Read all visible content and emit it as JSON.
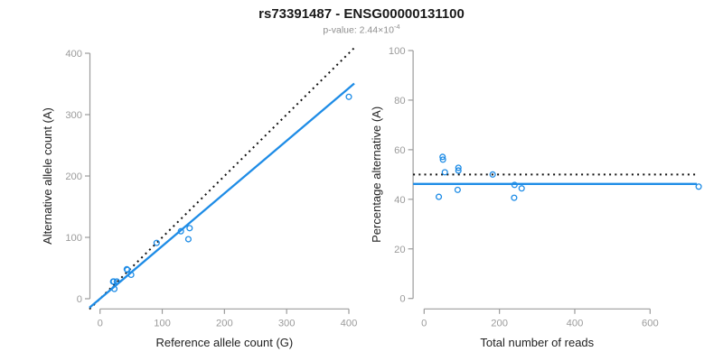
{
  "header": {
    "title": "rs73391487 - ENSG00000131100",
    "p_value_prefix": "p-value: 2.44×10",
    "p_value_exponent": "-4"
  },
  "colors": {
    "accent_blue": "#1e8ce6",
    "dotted_black": "#111111",
    "axis_gray": "#9b9b9b",
    "tick_label_gray": "#9b9b9b",
    "axis_title_black": "#222222"
  },
  "chart_data": [
    {
      "type": "scatter",
      "panel": "allele-counts",
      "xlabel": "Reference allele count (G)",
      "ylabel": "Alternative allele count (A)",
      "xlim": [
        0,
        400
      ],
      "ylim": [
        0,
        400
      ],
      "xticks": [
        0,
        100,
        200,
        300,
        400
      ],
      "yticks": [
        0,
        100,
        200,
        300,
        400
      ],
      "grid": false,
      "legend": null,
      "points": [
        [
          23,
          16
        ],
        [
          21,
          28
        ],
        [
          22,
          28
        ],
        [
          27,
          28
        ],
        [
          43,
          48
        ],
        [
          44,
          47
        ],
        [
          50,
          39
        ],
        [
          91,
          91
        ],
        [
          130,
          110
        ],
        [
          144,
          115
        ],
        [
          142,
          97
        ],
        [
          400,
          329
        ]
      ],
      "lines": [
        {
          "id": "identity-line",
          "kind": "abline",
          "slope": 1,
          "intercept": 0,
          "style": "dotted",
          "color": "dotted_black"
        },
        {
          "id": "regression-line",
          "kind": "abline",
          "slope": 0.858,
          "intercept": 0,
          "style": "solid",
          "color": "accent_blue"
        }
      ]
    },
    {
      "type": "scatter",
      "panel": "percentage-alternative",
      "xlabel": "Total number of reads",
      "ylabel": "Percentage alternative (A)",
      "xlim": [
        0,
        729
      ],
      "ylim": [
        0,
        100
      ],
      "xticks": [
        0,
        200,
        400,
        600
      ],
      "yticks": [
        0,
        20,
        40,
        60,
        80,
        100
      ],
      "grid": false,
      "legend": null,
      "points": [
        [
          39,
          41.0
        ],
        [
          49,
          57.1
        ],
        [
          50,
          56.0
        ],
        [
          55,
          50.9
        ],
        [
          91,
          52.7
        ],
        [
          91,
          51.6
        ],
        [
          89,
          43.8
        ],
        [
          182,
          50.0
        ],
        [
          240,
          45.8
        ],
        [
          259,
          44.4
        ],
        [
          239,
          40.6
        ],
        [
          729,
          45.1
        ]
      ],
      "lines": [
        {
          "id": "expected-50pct-line",
          "kind": "hline",
          "y": 50,
          "style": "dotted",
          "color": "dotted_black"
        },
        {
          "id": "mean-percentage-line",
          "kind": "hline",
          "y": 46.2,
          "style": "solid",
          "color": "accent_blue"
        }
      ]
    }
  ]
}
